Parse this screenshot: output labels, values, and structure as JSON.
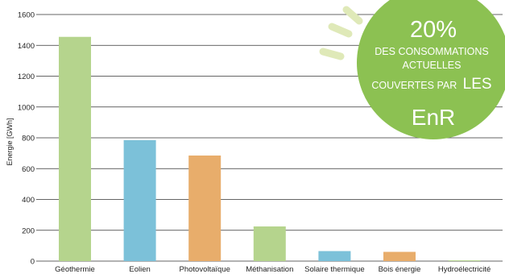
{
  "chart_data": {
    "type": "bar",
    "ylabel": "Energie [GWh]",
    "xlabel": "",
    "ylim": [
      0,
      1600
    ],
    "yticks": [
      0,
      200,
      400,
      600,
      800,
      1000,
      1200,
      1400,
      1600
    ],
    "grid": true,
    "categories": [
      "Géothermie",
      "Eolien",
      "Photovoltaïque",
      "Méthanisation",
      "Solaire thermique",
      "Bois énergie",
      "Hydroélectricité"
    ],
    "values": [
      1455,
      785,
      685,
      225,
      65,
      60,
      5
    ],
    "colors": [
      "#b5d48d",
      "#7cc1d9",
      "#e8ad6b",
      "#b5d48d",
      "#7cc1d9",
      "#e8ad6b",
      "#b5d48d"
    ]
  },
  "callout": {
    "line1": "20%",
    "line2": "DES CONSOMMATIONS",
    "line3": "ACTUELLES",
    "line4a": "COUVERTES PAR",
    "line4b": "LES",
    "line5": "EnR",
    "color": "#8cc152",
    "ray_color": "#dfe9b8"
  }
}
